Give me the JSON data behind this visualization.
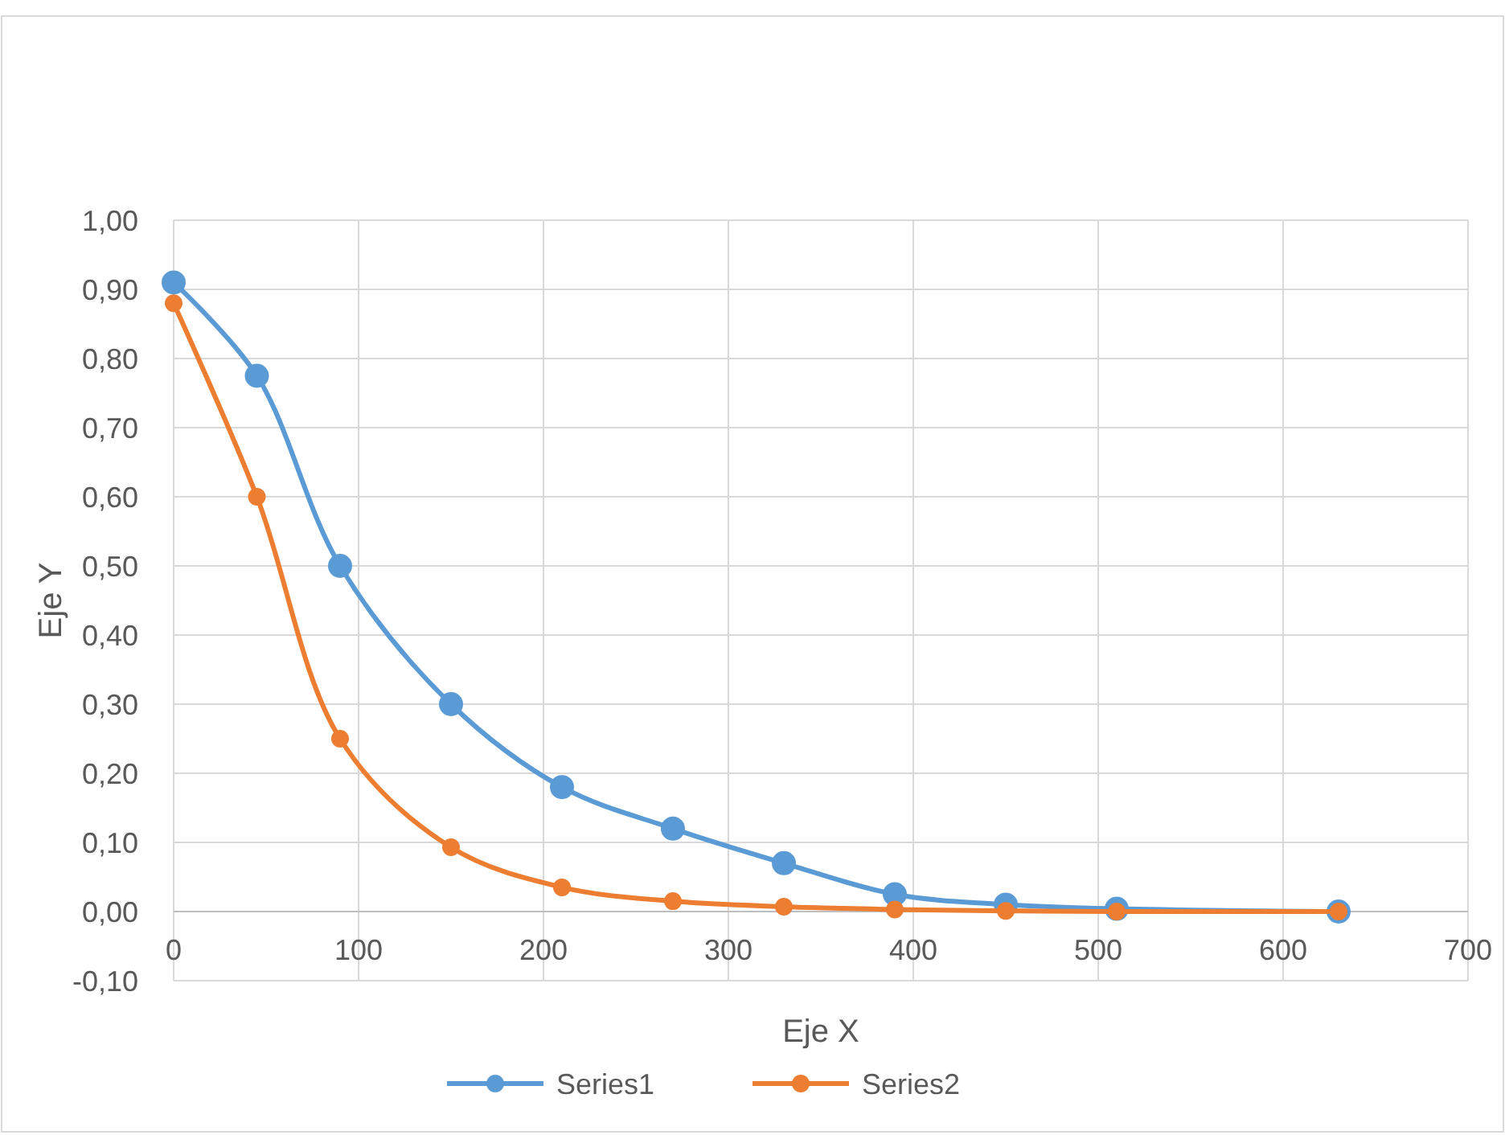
{
  "chart_data": {
    "type": "line",
    "xlabel": "Eje X",
    "ylabel": "Eje Y",
    "x": [
      0,
      45,
      90,
      150,
      210,
      270,
      330,
      390,
      450,
      510,
      630
    ],
    "series": [
      {
        "name": "Series1",
        "color": "#5b9bd5",
        "values": [
          0.91,
          0.775,
          0.5,
          0.3,
          0.18,
          0.12,
          0.07,
          0.025,
          0.01,
          0.004,
          0
        ]
      },
      {
        "name": "Series2",
        "color": "#ed7d31",
        "values": [
          0.88,
          0.6,
          0.25,
          0.093,
          0.035,
          0.015,
          0.007,
          0.003,
          0.001,
          0,
          0
        ]
      }
    ],
    "xlim": [
      0,
      700
    ],
    "xticks": [
      0,
      100,
      200,
      300,
      400,
      500,
      600,
      700
    ],
    "ylim": [
      -0.1,
      1
    ],
    "yticks": [
      {
        "value": -0.1,
        "label": "-0,10"
      },
      {
        "value": 0,
        "label": "0,00"
      },
      {
        "value": 0.1,
        "label": "0,10"
      },
      {
        "value": 0.2,
        "label": "0,20"
      },
      {
        "value": 0.3,
        "label": "0,30"
      },
      {
        "value": 0.4,
        "label": "0,40"
      },
      {
        "value": 0.5,
        "label": "0,50"
      },
      {
        "value": 0.6,
        "label": "0,60"
      },
      {
        "value": 0.7,
        "label": "0,70"
      },
      {
        "value": 0.8,
        "label": "0,80"
      },
      {
        "value": 0.9,
        "label": "0,90"
      },
      {
        "value": 1,
        "label": "1,00"
      }
    ],
    "grid": true,
    "legend": "bottom",
    "marker": "circle",
    "line_style": "solid"
  }
}
